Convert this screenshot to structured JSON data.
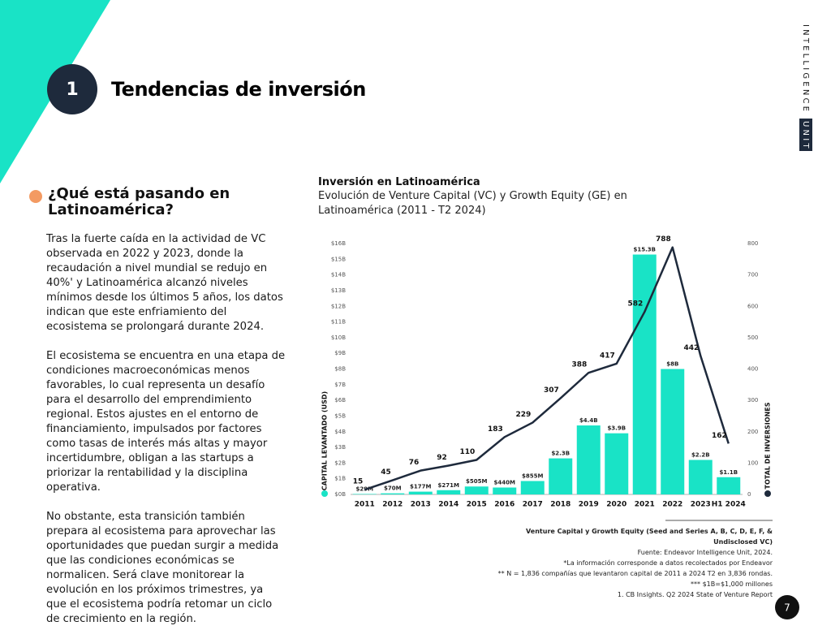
{
  "header": {
    "number": "1",
    "title": "Tendencias de inversión",
    "brand": "INTELLIGENCE",
    "brand_highlight": "UNIT"
  },
  "section": {
    "heading": "¿Qué está pasando en Latinoamérica?",
    "paragraphs": [
      "Tras la fuerte caída en la actividad de VC observada en 2022 y 2023, donde la recaudación a nivel mundial se redujo en 40%' y Latinoamérica alcanzó niveles mínimos desde los últimos 5 años, los datos indican que este enfriamiento del ecosistema se prolongará durante 2024.",
      "El ecosistema se encuentra en una etapa de condiciones macroeconómicas menos favorables, lo cual representa un desafío para el desarrollo del emprendimiento regional. Estos ajustes en el entorno de financiamiento, impulsados por factores como tasas de interés más altas y mayor incertidumbre, obligan a las startups a priorizar la rentabilidad y la disciplina operativa.",
      "No obstante, esta transición también prepara al ecosistema para aprovechar las oportunidades que puedan surgir a medida que las condiciones económicas se normalicen. Será clave monitorear la evolución en los próximos trimestres, ya que el ecosistema podría retomar un ciclo de crecimiento en la región."
    ]
  },
  "chart_data": {
    "type": "bar",
    "title": "Inversión en Latinoamérica",
    "subtitle": "Evolución de Venture Capital (VC) y Growth Equity (GE) en Latinoamérica (2011 - T2 2024)",
    "y_label": "CAPITAL LEVANTADO (USD)",
    "y2_label": "TOTAL DE INVERSIONES",
    "categories": [
      "2011",
      "2012",
      "2013",
      "2014",
      "2015",
      "2016",
      "2017",
      "2018",
      "2019",
      "2020",
      "2021",
      "2022",
      "2023",
      "H1 2024"
    ],
    "series": [
      {
        "type": "bar",
        "color": "#19e3c6",
        "values": [
          0.029,
          0.07,
          0.177,
          0.271,
          0.505,
          0.44,
          0.855,
          2.3,
          4.4,
          3.9,
          15.3,
          8,
          2.2,
          1.1
        ],
        "value_labels": [
          "$29M",
          "$70M",
          "$177M",
          "$271M",
          "$505M",
          "$440M",
          "$855M",
          "$2.3B",
          "$4.4B",
          "$3.9B",
          "$15.3B",
          "$8B",
          "$2.2B",
          "$1.1B"
        ]
      },
      {
        "type": "line",
        "axis": "y2",
        "color": "#1e2a3c",
        "values": [
          15,
          45,
          76,
          92,
          110,
          183,
          229,
          307,
          388,
          417,
          582,
          788,
          442,
          162
        ]
      }
    ],
    "ylim": [
      0,
      16
    ],
    "yticks": [
      {
        "value": 0,
        "label": "$0B"
      },
      {
        "value": 1,
        "label": "$1B"
      },
      {
        "value": 2,
        "label": "$2B"
      },
      {
        "value": 3,
        "label": "$3B"
      },
      {
        "value": 4,
        "label": "$4B"
      },
      {
        "value": 5,
        "label": "$5B"
      },
      {
        "value": 6,
        "label": "$6B"
      },
      {
        "value": 7,
        "label": "$7B"
      },
      {
        "value": 8,
        "label": "$8B"
      },
      {
        "value": 9,
        "label": "$9B"
      },
      {
        "value": 10,
        "label": "$10B"
      },
      {
        "value": 11,
        "label": "$11B"
      },
      {
        "value": 12,
        "label": "$12B"
      },
      {
        "value": 13,
        "label": "$13B"
      },
      {
        "value": 14,
        "label": "$14B"
      },
      {
        "value": 15,
        "label": "$15B"
      },
      {
        "value": 16,
        "label": "$16B"
      }
    ],
    "y2lim": [
      0,
      800
    ],
    "y2ticks": [
      0,
      100,
      200,
      300,
      400,
      500,
      600,
      700,
      800
    ]
  },
  "notes": [
    "Venture Capital y Growth Equity (Seed and Series A, B, C, D, E, F, & Undisclosed VC)",
    "Fuente: Endeavor Intelligence Unit, 2024.",
    "*La información corresponde a datos recolectados por Endeavor",
    "** N = 1,836 compañías que levantaron capital de 2011 a 2024 T2 en 3,836 rondas.",
    "*** $1B=$1,000 millones",
    "1. CB Insights. Q2 2024 State of Venture Report"
  ],
  "page_number": "7"
}
